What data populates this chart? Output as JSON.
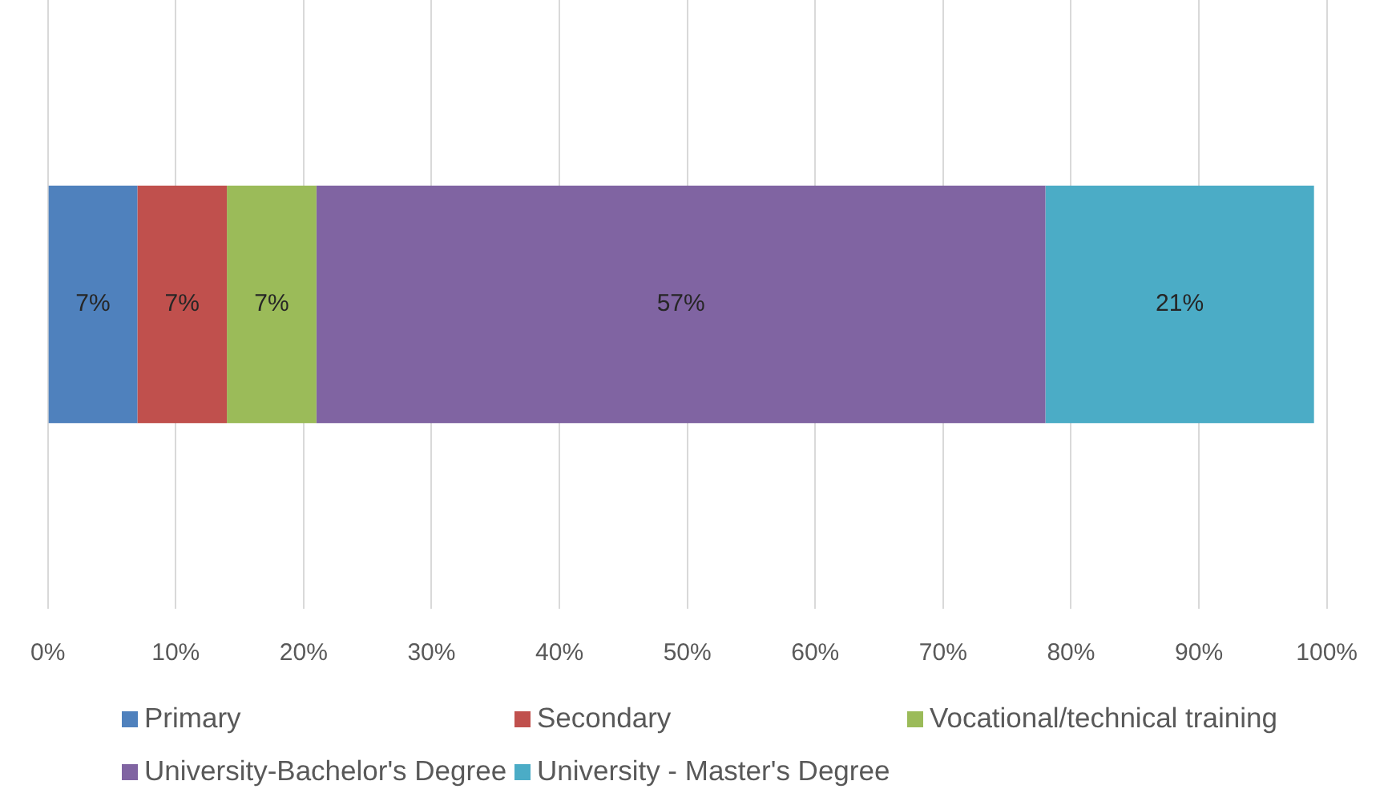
{
  "chart_data": {
    "type": "bar",
    "orientation": "horizontal",
    "stacked": true,
    "categories": [
      null
    ],
    "series": [
      {
        "name": "Primary",
        "color": "#4f81bd",
        "values": [
          7
        ],
        "value_labels": [
          "7%"
        ]
      },
      {
        "name": "Secondary",
        "color": "#c0504d",
        "values": [
          7
        ],
        "value_labels": [
          "7%"
        ]
      },
      {
        "name": "Vocational/technical training",
        "color": "#9bbb59",
        "values": [
          7
        ],
        "value_labels": [
          "7%"
        ]
      },
      {
        "name": "University-Bachelor's Degree",
        "color": "#8064a2",
        "values": [
          57
        ],
        "value_labels": [
          "57%"
        ]
      },
      {
        "name": "University - Master's Degree",
        "color": "#4bacc6",
        "values": [
          21
        ],
        "value_labels": [
          "21%"
        ]
      }
    ],
    "xlim": [
      0,
      100
    ],
    "xticks": [
      {
        "value": 0,
        "label": "0%"
      },
      {
        "value": 10,
        "label": "10%"
      },
      {
        "value": 20,
        "label": "20%"
      },
      {
        "value": 30,
        "label": "30%"
      },
      {
        "value": 40,
        "label": "40%"
      },
      {
        "value": 50,
        "label": "50%"
      },
      {
        "value": 60,
        "label": "60%"
      },
      {
        "value": 70,
        "label": "70%"
      },
      {
        "value": 80,
        "label": "80%"
      },
      {
        "value": 90,
        "label": "90%"
      },
      {
        "value": 100,
        "label": "100%"
      }
    ],
    "grid": "x",
    "legend": "bottom"
  }
}
